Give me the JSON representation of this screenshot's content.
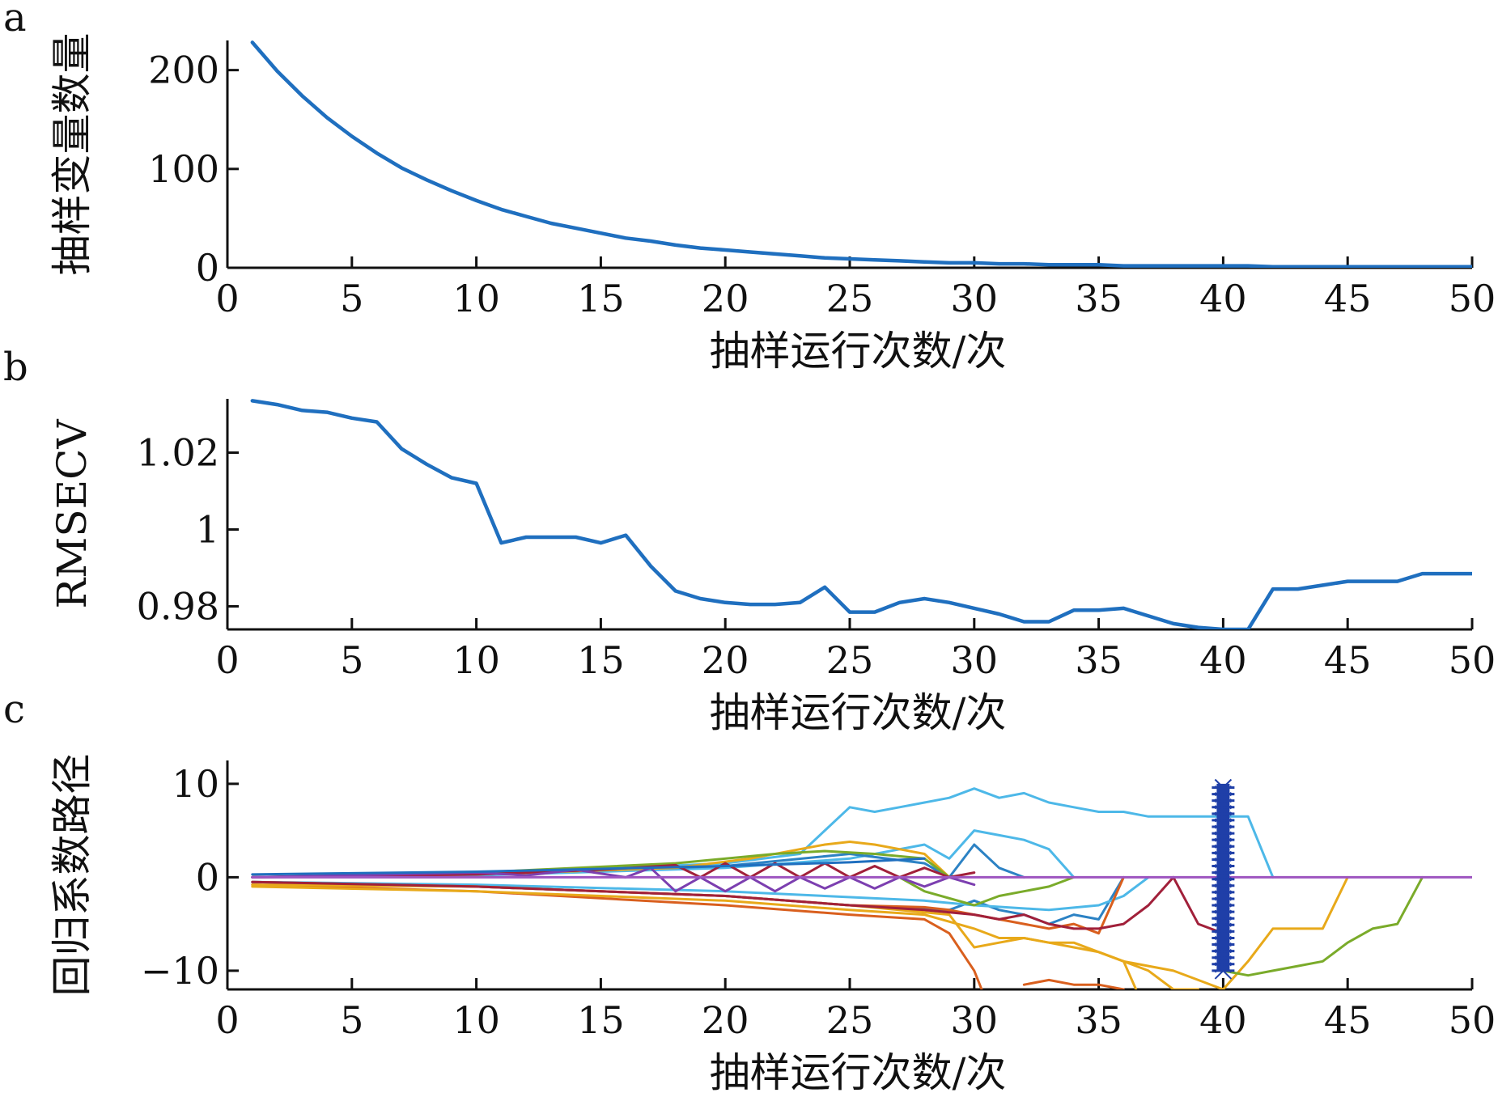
{
  "chart_data": [
    {
      "panel": "a",
      "type": "line",
      "xlabel": "抽样运行次数/次",
      "ylabel": "抽样变量数量",
      "xlim": [
        0,
        50
      ],
      "ylim": [
        0,
        230
      ],
      "xticks": [
        "0",
        "5",
        "10",
        "15",
        "20",
        "25",
        "30",
        "35",
        "40",
        "45",
        "50"
      ],
      "yticks": [
        {
          "v": 0,
          "t": "0"
        },
        {
          "v": 100,
          "t": "100"
        },
        {
          "v": 200,
          "t": "200"
        }
      ],
      "series": [
        {
          "color": "#1f6fbf",
          "x": [
            1,
            2,
            3,
            4,
            5,
            6,
            7,
            8,
            9,
            10,
            11,
            12,
            13,
            14,
            15,
            16,
            17,
            18,
            19,
            20,
            21,
            22,
            23,
            24,
            25,
            26,
            27,
            28,
            29,
            30,
            31,
            32,
            33,
            34,
            35,
            36,
            37,
            38,
            39,
            40,
            41,
            42,
            43,
            44,
            45,
            46,
            47,
            48,
            49,
            50
          ],
          "y": [
            228,
            199,
            174,
            152,
            133,
            116,
            101,
            89,
            78,
            68,
            59,
            52,
            45,
            40,
            35,
            30,
            27,
            23,
            20,
            18,
            16,
            14,
            12,
            10,
            9,
            8,
            7,
            6,
            5,
            5,
            4,
            4,
            3,
            3,
            3,
            2,
            2,
            2,
            2,
            2,
            2,
            1,
            1,
            1,
            1,
            1,
            1,
            1,
            1,
            1
          ]
        }
      ]
    },
    {
      "panel": "b",
      "type": "line",
      "xlabel": "抽样运行次数/次",
      "ylabel": "RMSECV",
      "xlim": [
        0,
        50
      ],
      "ylim": [
        0.974,
        1.034
      ],
      "xticks": [
        "0",
        "5",
        "10",
        "15",
        "20",
        "25",
        "30",
        "35",
        "40",
        "45",
        "50"
      ],
      "yticks": [
        {
          "v": 0.98,
          "t": "0.98"
        },
        {
          "v": 1.0,
          "t": "1"
        },
        {
          "v": 1.02,
          "t": "1.02"
        }
      ],
      "series": [
        {
          "color": "#1f6fbf",
          "x": [
            1,
            2,
            3,
            4,
            5,
            6,
            7,
            8,
            9,
            10,
            11,
            12,
            13,
            14,
            15,
            16,
            17,
            18,
            19,
            20,
            21,
            22,
            23,
            24,
            25,
            26,
            27,
            28,
            29,
            30,
            31,
            32,
            33,
            34,
            35,
            36,
            37,
            38,
            39,
            40,
            41,
            42,
            43,
            44,
            45,
            46,
            47,
            48,
            49,
            50
          ],
          "y": [
            1.0335,
            1.0325,
            1.031,
            1.0305,
            1.029,
            1.028,
            1.021,
            1.017,
            1.0135,
            1.012,
            0.9965,
            0.998,
            0.998,
            0.998,
            0.9965,
            0.9985,
            0.9905,
            0.984,
            0.982,
            0.981,
            0.9805,
            0.9805,
            0.981,
            0.985,
            0.9785,
            0.9785,
            0.981,
            0.982,
            0.981,
            0.9795,
            0.978,
            0.976,
            0.976,
            0.979,
            0.979,
            0.9795,
            0.9775,
            0.9755,
            0.9745,
            0.974,
            0.974,
            0.9845,
            0.9845,
            0.9855,
            0.9865,
            0.9865,
            0.9865,
            0.9885,
            0.9885,
            0.9885
          ]
        }
      ]
    },
    {
      "panel": "c",
      "type": "line",
      "xlabel": "抽样运行次数/次",
      "ylabel": "回归系数路径",
      "xlim": [
        0,
        50
      ],
      "ylim": [
        -12,
        12.5
      ],
      "xticks": [
        "0",
        "5",
        "10",
        "15",
        "20",
        "25",
        "30",
        "35",
        "40",
        "45",
        "50"
      ],
      "yticks": [
        {
          "v": -10,
          "t": "−10"
        },
        {
          "v": 0,
          "t": "0"
        },
        {
          "v": 10,
          "t": "10"
        }
      ],
      "marker_line": {
        "x": 40,
        "from": -10,
        "to": 10,
        "color": "#1f3fa8"
      },
      "series": [
        {
          "color": "#4db8e8",
          "x": [
            1,
            5,
            10,
            15,
            20,
            23,
            24,
            25,
            26,
            27,
            28,
            29,
            30,
            31,
            32,
            33,
            34,
            35,
            36,
            37,
            38,
            39,
            40,
            41,
            42
          ],
          "y": [
            0,
            0.2,
            0.5,
            0.9,
            1.5,
            2.5,
            5,
            7.5,
            7,
            7.5,
            8,
            8.5,
            9.5,
            8.5,
            9,
            8,
            7.5,
            7,
            7,
            6.5,
            6.5,
            6.5,
            6.5,
            6.5,
            0
          ]
        },
        {
          "color": "#4db8e8",
          "x": [
            1,
            10,
            20,
            25,
            28,
            29,
            30,
            31,
            32,
            33,
            34
          ],
          "y": [
            0,
            0.2,
            1,
            2,
            3.5,
            2,
            5,
            4.5,
            4,
            3,
            0
          ]
        },
        {
          "color": "#2c82c4",
          "x": [
            1,
            10,
            20,
            25,
            28,
            29,
            30,
            31,
            32
          ],
          "y": [
            0,
            0.3,
            1.2,
            2.5,
            1.5,
            0,
            3.5,
            1,
            0
          ]
        },
        {
          "color": "#2c82c4",
          "x": [
            1,
            10,
            20,
            25,
            29,
            30,
            31,
            32,
            33,
            34,
            35,
            36
          ],
          "y": [
            -0.5,
            -1,
            -2,
            -3,
            -3.5,
            -2.5,
            -3.5,
            -4,
            -5,
            -4,
            -4.5,
            0
          ]
        },
        {
          "color": "#4db8e8",
          "x": [
            1,
            10,
            20,
            28,
            30,
            33,
            35,
            36,
            37
          ],
          "y": [
            -0.5,
            -0.8,
            -1.5,
            -2.5,
            -3,
            -3.5,
            -3,
            -2,
            0
          ]
        },
        {
          "color": "#d95f1e",
          "x": [
            1,
            10,
            20,
            25,
            28,
            29,
            30,
            30.3
          ],
          "y": [
            -0.8,
            -1.5,
            -3,
            -4,
            -4.5,
            -6,
            -10,
            -12
          ]
        },
        {
          "color": "#d95f1e",
          "x": [
            32,
            33,
            34,
            35,
            36
          ],
          "y": [
            -11.5,
            -11,
            -11.5,
            -11.5,
            -12
          ]
        },
        {
          "color": "#d95f1e",
          "x": [
            1,
            10,
            20,
            25,
            28,
            29,
            30,
            31,
            32,
            33,
            34,
            35,
            36
          ],
          "y": [
            -0.5,
            -1,
            -2,
            -3,
            -3.2,
            -3.5,
            -4,
            -4.5,
            -5,
            -5.5,
            -5,
            -6,
            0
          ]
        },
        {
          "color": "#e8a91a",
          "x": [
            1,
            10,
            20,
            25,
            28,
            30,
            31,
            32,
            33,
            34,
            35,
            36,
            36.5
          ],
          "y": [
            -1,
            -1.5,
            -2.5,
            -3.5,
            -4,
            -5.5,
            -6.5,
            -6.5,
            -7,
            -7.5,
            -8,
            -9,
            -12
          ]
        },
        {
          "color": "#e8a91a",
          "x": [
            1,
            10,
            20,
            25,
            29,
            30,
            31,
            32,
            33,
            34,
            35,
            36,
            37,
            38,
            39,
            40,
            41,
            42,
            43,
            44,
            45
          ],
          "y": [
            -0.8,
            -1,
            -2,
            -3,
            -4,
            -7.5,
            -7,
            -6.5,
            -7,
            -7,
            -8,
            -9,
            -9.5,
            -10,
            -11,
            -12,
            -9,
            -5.5,
            -5.5,
            -5.5,
            0
          ]
        },
        {
          "color": "#e8a91a",
          "x": [
            1,
            10,
            18,
            21,
            23,
            24,
            25,
            26,
            27,
            28,
            29
          ],
          "y": [
            0,
            0.3,
            1,
            2,
            3,
            3.5,
            3.8,
            3.5,
            3,
            2.5,
            0
          ]
        },
        {
          "color": "#e8a91a",
          "x": [
            36,
            37,
            38,
            39
          ],
          "y": [
            -9,
            -10,
            -12,
            -12
          ]
        },
        {
          "color": "#7aab2a",
          "x": [
            1,
            10,
            18,
            22,
            24,
            26,
            28,
            29
          ],
          "y": [
            0,
            0.5,
            1.5,
            2.5,
            2.8,
            2.5,
            2,
            0
          ]
        },
        {
          "color": "#7aab2a",
          "x": [
            27,
            28,
            30,
            31,
            32,
            33,
            34
          ],
          "y": [
            0,
            -1.5,
            -3,
            -2,
            -1.5,
            -1,
            0
          ]
        },
        {
          "color": "#7aab2a",
          "x": [
            40,
            41,
            42,
            43,
            44,
            45,
            46,
            47,
            48
          ],
          "y": [
            -10,
            -10.5,
            -10,
            -9.5,
            -9,
            -7,
            -5.5,
            -5,
            0
          ]
        },
        {
          "color": "#a1203a",
          "x": [
            1,
            10,
            20,
            25,
            28,
            30,
            31,
            32,
            33,
            34,
            35,
            36,
            37,
            38,
            39,
            40
          ],
          "y": [
            -0.5,
            -1,
            -2,
            -3,
            -3.5,
            -4,
            -4.5,
            -4,
            -5,
            -5.5,
            -5.5,
            -5,
            -3,
            0,
            -5,
            -6
          ]
        },
        {
          "color": "#a1203a",
          "x": [
            1,
            10,
            15,
            18,
            19,
            20,
            21,
            22,
            23,
            24,
            25,
            26,
            27,
            28,
            29,
            30
          ],
          "y": [
            0,
            0.3,
            0.8,
            1.3,
            0,
            1.5,
            0,
            1.5,
            0,
            1.5,
            0,
            1.2,
            0,
            1,
            0,
            0.5
          ]
        },
        {
          "color": "#7c3fb0",
          "x": [
            1,
            10,
            12,
            14,
            16,
            17,
            18,
            19,
            20,
            21,
            22,
            23,
            24,
            25,
            26,
            27,
            28,
            29,
            30
          ],
          "y": [
            0,
            0.5,
            0.2,
            0.8,
            0,
            1,
            -1.5,
            0,
            -1.5,
            0,
            -1.5,
            0,
            -1.2,
            0,
            -1.2,
            0,
            -1,
            0,
            -0.8
          ]
        },
        {
          "color": "#1f6fbf",
          "x": [
            1,
            10,
            15,
            20,
            25,
            28
          ],
          "y": [
            0.3,
            0.6,
            0.9,
            1.2,
            1.6,
            2
          ]
        },
        {
          "color": "#9e55c0",
          "x": [
            1,
            50
          ],
          "y": [
            0,
            0
          ]
        }
      ]
    }
  ],
  "panels": {
    "a": {
      "letter": "a"
    },
    "b": {
      "letter": "b"
    },
    "c": {
      "letter": "c"
    }
  }
}
